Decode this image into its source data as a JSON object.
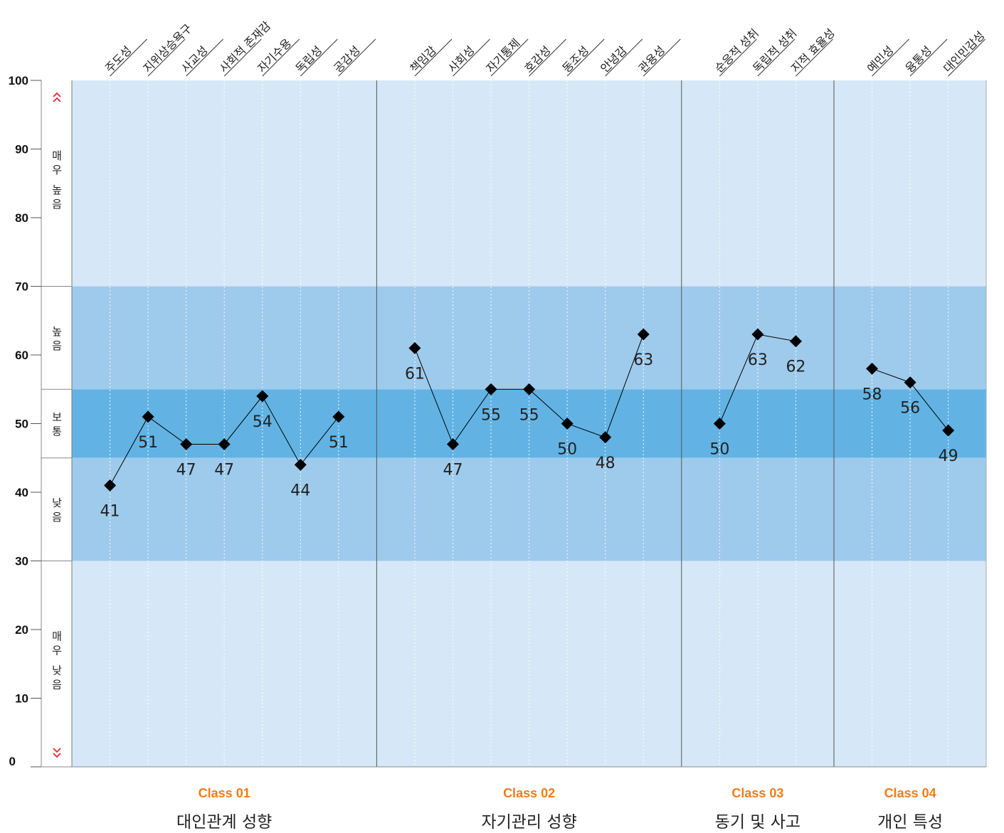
{
  "chart_data": {
    "type": "line",
    "ylim": [
      0,
      100
    ],
    "yticks": [
      0,
      10,
      20,
      30,
      40,
      50,
      60,
      70,
      80,
      90,
      100
    ],
    "grid": true,
    "bands": [
      {
        "range": [
          70,
          100
        ],
        "label": "매우 높음",
        "color": "#d6e8f7"
      },
      {
        "range": [
          55,
          70
        ],
        "label": "높음",
        "color": "#9ecbec"
      },
      {
        "range": [
          45,
          55
        ],
        "label": "보통",
        "color": "#62b3e4"
      },
      {
        "range": [
          30,
          45
        ],
        "label": "낮음",
        "color": "#9ecbec"
      },
      {
        "range": [
          0,
          30
        ],
        "label": "매우 낮음",
        "color": "#d6e8f7"
      }
    ],
    "marker_color": "#000000",
    "arrow_color": "#e8262b",
    "class_id_color": "#f07c1b",
    "groups": [
      {
        "id": "Class 01",
        "name": "대인관계 성향",
        "categories": [
          "주도성",
          "지위상승욕구",
          "사교성",
          "사회적 존재감",
          "자기수용",
          "독립성",
          "공감성"
        ],
        "values": [
          41,
          51,
          47,
          47,
          54,
          44,
          51
        ]
      },
      {
        "id": "Class 02",
        "name": "자기관리 성향",
        "categories": [
          "책임감",
          "사회성",
          "자기통제",
          "호감성",
          "동조성",
          "안녕감",
          "관용성"
        ],
        "values": [
          61,
          47,
          55,
          55,
          50,
          48,
          63
        ]
      },
      {
        "id": "Class 03",
        "name": "동기 및 사고",
        "categories": [
          "순응적 성취",
          "독립적 성취",
          "지적 효율성"
        ],
        "values": [
          50,
          63,
          62
        ]
      },
      {
        "id": "Class 04",
        "name": "개인 특성",
        "categories": [
          "예민성",
          "융통성",
          "대인민감성"
        ],
        "values": [
          58,
          56,
          49
        ]
      }
    ]
  }
}
